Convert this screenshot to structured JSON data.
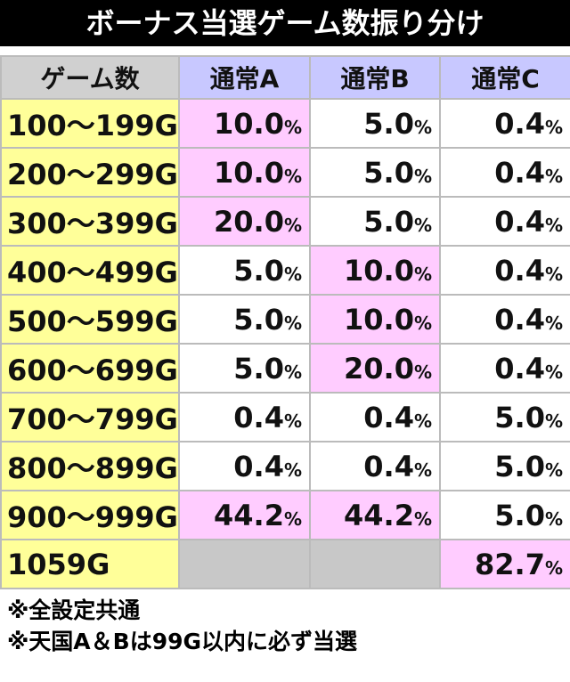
{
  "title": "ボーナス当選ゲーム数振り分け",
  "table": {
    "header": [
      "ゲーム数",
      "通常A",
      "通常B",
      "通常C"
    ],
    "rows": [
      {
        "range": "100〜199G",
        "cells": [
          "10.0%",
          "5.0%",
          "0.4%"
        ],
        "highlight": [
          0
        ]
      },
      {
        "range": "200〜299G",
        "cells": [
          "10.0%",
          "5.0%",
          "0.4%"
        ],
        "highlight": [
          0
        ]
      },
      {
        "range": "300〜399G",
        "cells": [
          "20.0%",
          "5.0%",
          "0.4%"
        ],
        "highlight": [
          0
        ]
      },
      {
        "range": "400〜499G",
        "cells": [
          "5.0%",
          "10.0%",
          "0.4%"
        ],
        "highlight": [
          1
        ]
      },
      {
        "range": "500〜599G",
        "cells": [
          "5.0%",
          "10.0%",
          "0.4%"
        ],
        "highlight": [
          1
        ]
      },
      {
        "range": "600〜699G",
        "cells": [
          "5.0%",
          "20.0%",
          "0.4%"
        ],
        "highlight": [
          1
        ]
      },
      {
        "range": "700〜799G",
        "cells": [
          "0.4%",
          "0.4%",
          "5.0%"
        ],
        "highlight": []
      },
      {
        "range": "800〜899G",
        "cells": [
          "0.4%",
          "0.4%",
          "5.0%"
        ],
        "highlight": []
      },
      {
        "range": "900〜999G",
        "cells": [
          "44.2%",
          "44.2%",
          "5.0%"
        ],
        "highlight": [
          0,
          1
        ]
      },
      {
        "range": "1059G",
        "cells": [
          null,
          null,
          "82.7%"
        ],
        "highlight": [
          2
        ]
      }
    ]
  },
  "notes": [
    "※全設定共通",
    "※天国A＆Bは99G以内に必ず当選"
  ]
}
